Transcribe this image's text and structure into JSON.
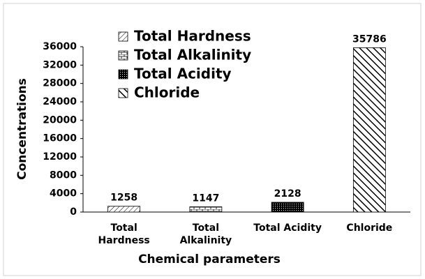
{
  "chart_data": {
    "type": "bar",
    "x_label": "Chemical parameters",
    "y_label": "Concentrations",
    "categories": [
      "Total Hardness",
      "Total Alkalinity",
      "Total Acidity",
      "Chloride"
    ],
    "values": [
      1258,
      1147,
      2128,
      35786
    ],
    "patterns": [
      "light-diagonal",
      "brick",
      "dense-dots",
      "wide-downward-diagonal"
    ],
    "color": "#000000",
    "ylim": [
      0,
      36000
    ],
    "yticks": [
      0,
      4000,
      8000,
      12000,
      16000,
      20000,
      24000,
      28000,
      32000,
      36000
    ],
    "legend": "top-left"
  }
}
